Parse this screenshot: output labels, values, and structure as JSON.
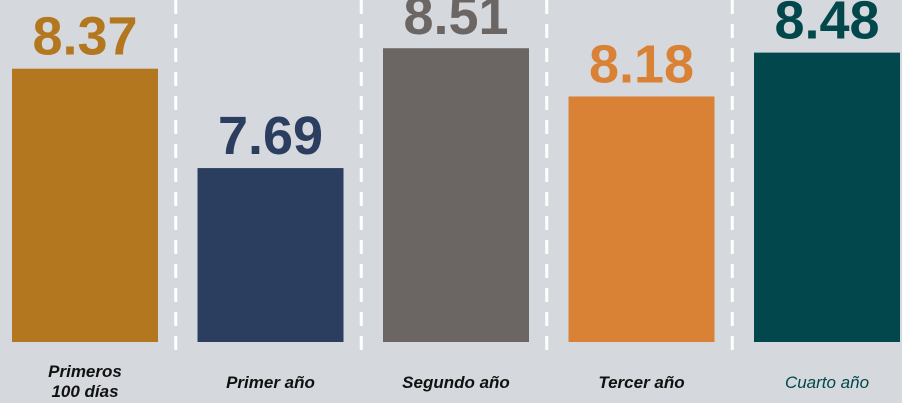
{
  "chart_data": {
    "type": "bar",
    "categories": [
      "Primeros 100 días",
      "Primer año",
      "Segundo año",
      "Tercer año",
      "Cuarto año"
    ],
    "values": [
      8.37,
      7.69,
      8.51,
      8.18,
      8.48
    ],
    "colors": [
      "#b37720",
      "#2b3e5f",
      "#6b6663",
      "#d98236",
      "#02474b"
    ],
    "ylim": [
      6.5,
      8.84
    ]
  }
}
